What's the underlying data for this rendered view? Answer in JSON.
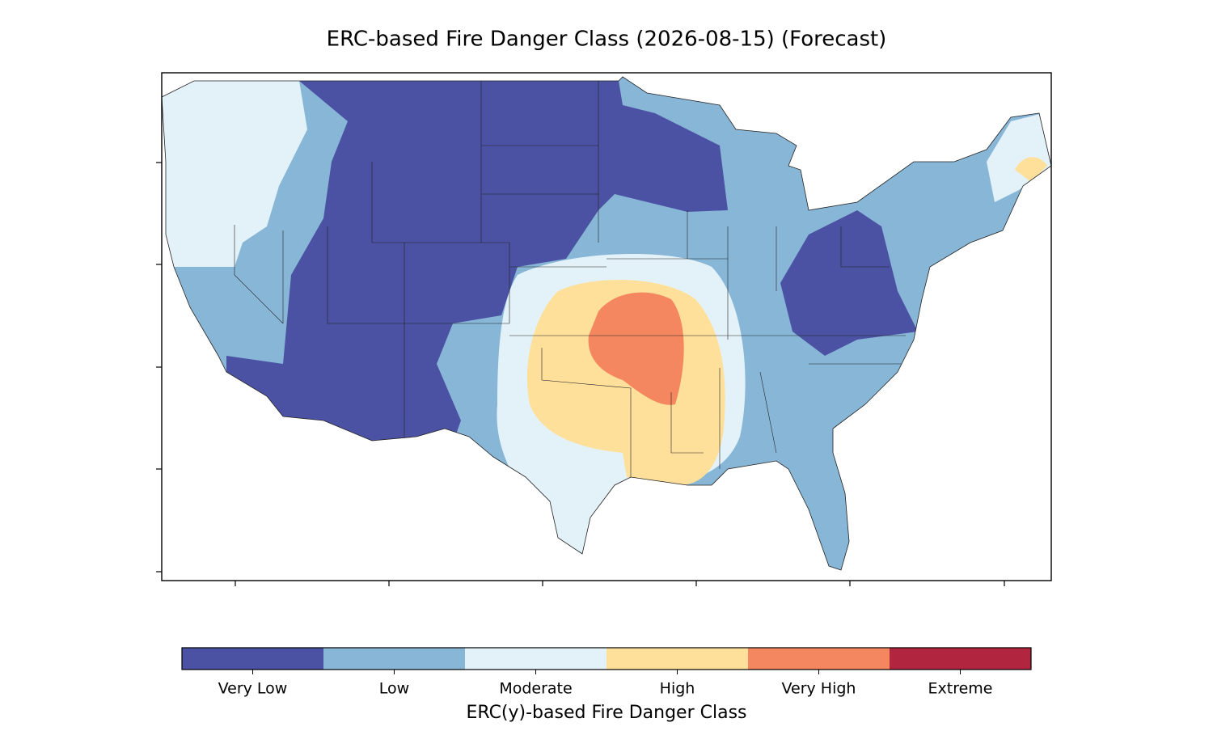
{
  "title": "ERC-based Fire Danger Class (2026-08-15) (Forecast)",
  "colorbar": {
    "label": "ERC(y)-based Fire Danger Class",
    "classes": [
      {
        "name": "Very Low",
        "color": "#4b52a3"
      },
      {
        "name": "Low",
        "color": "#88b6d7"
      },
      {
        "name": "Moderate",
        "color": "#e3f2f8"
      },
      {
        "name": "High",
        "color": "#fee09b"
      },
      {
        "name": "Very High",
        "color": "#f4875f"
      },
      {
        "name": "Extreme",
        "color": "#b1253f"
      }
    ]
  }
}
